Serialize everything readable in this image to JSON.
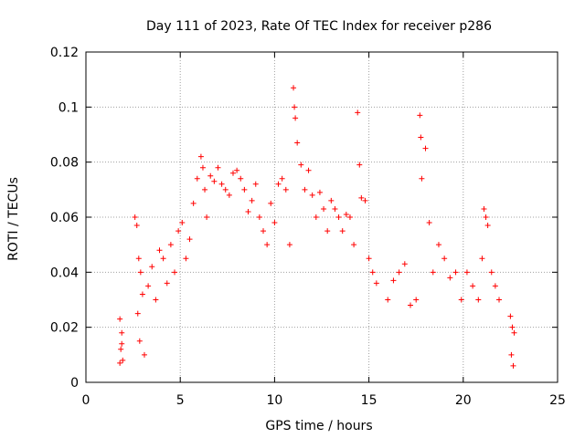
{
  "chart_data": {
    "type": "scatter",
    "title": "Day 111 of 2023, Rate Of TEC Index for receiver p286",
    "xlabel": "GPS time / hours",
    "ylabel": "ROTI / TECUs",
    "xlim": [
      0,
      25
    ],
    "ylim": [
      0,
      0.12
    ],
    "xticks": [
      0,
      5,
      10,
      15,
      20,
      25
    ],
    "yticks": [
      0,
      0.02,
      0.04,
      0.06,
      0.08,
      0.1,
      0.12
    ],
    "xtick_labels": [
      "0",
      "5",
      "10",
      "15",
      "20",
      "25"
    ],
    "ytick_labels": [
      "0",
      "0.02",
      "0.04",
      "0.06",
      "0.08",
      "0.1",
      "0.12"
    ],
    "grid": true,
    "marker": "+",
    "color": "#ff0000",
    "series": [
      {
        "x": [
          1.8,
          1.9,
          1.85,
          1.95,
          1.8,
          1.9,
          2.6,
          2.7,
          2.8,
          2.9,
          3.0,
          2.75,
          2.85,
          3.1,
          3.3,
          3.5,
          3.7,
          3.9,
          4.1,
          4.3,
          4.5,
          4.7,
          4.9,
          5.1,
          5.3,
          5.5,
          5.7,
          5.9,
          6.1,
          6.2,
          6.3,
          6.4,
          6.6,
          6.8,
          7.0,
          7.2,
          7.4,
          7.6,
          7.8,
          8.0,
          8.2,
          8.4,
          8.6,
          8.8,
          9.0,
          9.2,
          9.4,
          9.6,
          9.8,
          10.0,
          10.2,
          10.4,
          10.6,
          10.8,
          11.0,
          11.05,
          11.1,
          11.2,
          11.4,
          11.6,
          11.8,
          12.0,
          12.2,
          12.4,
          12.6,
          12.8,
          13.0,
          13.2,
          13.4,
          13.6,
          13.8,
          14.0,
          14.2,
          14.4,
          14.5,
          14.6,
          14.8,
          15.0,
          15.2,
          15.4,
          16.0,
          16.3,
          16.6,
          16.9,
          17.2,
          17.5,
          17.7,
          17.75,
          17.8,
          18.0,
          18.2,
          18.4,
          18.7,
          19.0,
          19.3,
          19.6,
          19.9,
          20.2,
          20.5,
          20.8,
          21.0,
          21.1,
          21.2,
          21.3,
          21.5,
          21.7,
          21.9,
          22.5,
          22.6,
          22.7,
          22.55,
          22.65
        ],
        "y": [
          0.023,
          0.018,
          0.012,
          0.008,
          0.007,
          0.014,
          0.06,
          0.057,
          0.045,
          0.04,
          0.032,
          0.025,
          0.015,
          0.01,
          0.035,
          0.042,
          0.03,
          0.048,
          0.045,
          0.036,
          0.05,
          0.04,
          0.055,
          0.058,
          0.045,
          0.052,
          0.065,
          0.074,
          0.082,
          0.078,
          0.07,
          0.06,
          0.075,
          0.073,
          0.078,
          0.072,
          0.07,
          0.068,
          0.076,
          0.077,
          0.074,
          0.07,
          0.062,
          0.066,
          0.072,
          0.06,
          0.055,
          0.05,
          0.065,
          0.058,
          0.072,
          0.074,
          0.07,
          0.05,
          0.107,
          0.1,
          0.096,
          0.087,
          0.079,
          0.07,
          0.077,
          0.068,
          0.06,
          0.069,
          0.063,
          0.055,
          0.066,
          0.063,
          0.06,
          0.055,
          0.061,
          0.06,
          0.05,
          0.098,
          0.079,
          0.067,
          0.066,
          0.045,
          0.04,
          0.036,
          0.03,
          0.037,
          0.04,
          0.043,
          0.028,
          0.03,
          0.097,
          0.089,
          0.074,
          0.085,
          0.058,
          0.04,
          0.05,
          0.045,
          0.038,
          0.04,
          0.03,
          0.04,
          0.035,
          0.03,
          0.045,
          0.063,
          0.06,
          0.057,
          0.04,
          0.035,
          0.03,
          0.024,
          0.02,
          0.018,
          0.01,
          0.006
        ]
      }
    ]
  }
}
